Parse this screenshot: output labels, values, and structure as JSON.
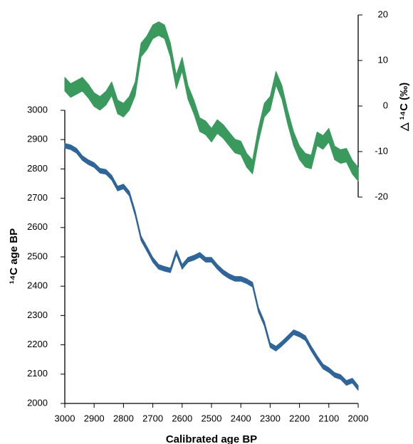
{
  "chart_data": {
    "type": "band",
    "xlabel": "Calibrated age BP",
    "ylabel": "¹⁴C age BP",
    "y2label": "△ ¹⁴C (‰)",
    "x": [
      3000,
      2980,
      2960,
      2940,
      2920,
      2900,
      2880,
      2860,
      2840,
      2820,
      2800,
      2780,
      2760,
      2740,
      2720,
      2700,
      2680,
      2660,
      2640,
      2620,
      2600,
      2580,
      2560,
      2540,
      2520,
      2500,
      2480,
      2460,
      2440,
      2420,
      2400,
      2380,
      2360,
      2340,
      2320,
      2300,
      2280,
      2260,
      2240,
      2220,
      2200,
      2180,
      2160,
      2140,
      2120,
      2100,
      2080,
      2060,
      2040,
      2020,
      2000
    ],
    "xlim": [
      3000,
      2000
    ],
    "xticks": [
      3000,
      2900,
      2800,
      2700,
      2600,
      2500,
      2400,
      2300,
      2200,
      2100,
      2000
    ],
    "ylim": [
      2000,
      3000
    ],
    "yticks": [
      2000,
      2100,
      2200,
      2300,
      2400,
      2500,
      2600,
      2700,
      2800,
      2900,
      3000
    ],
    "y2lim": [
      -20,
      20
    ],
    "y2ticks": [
      -20,
      -10,
      0,
      10,
      20
    ],
    "series": [
      {
        "color": "#2f6598",
        "axis": "y",
        "lower": [
          2871,
          2866,
          2854,
          2829,
          2815,
          2805,
          2786,
          2782,
          2762,
          2725,
          2732,
          2708,
          2640,
          2555,
          2519,
          2482,
          2458,
          2451,
          2446,
          2507,
          2458,
          2482,
          2489,
          2499,
          2482,
          2482,
          2458,
          2439,
          2426,
          2417,
          2417,
          2409,
          2397,
          2312,
          2264,
          2191,
          2179,
          2196,
          2215,
          2235,
          2227,
          2215,
          2179,
          2147,
          2118,
          2106,
          2089,
          2082,
          2062,
          2070,
          2045
        ],
        "upper": [
          2887,
          2882,
          2870,
          2845,
          2831,
          2821,
          2802,
          2798,
          2778,
          2741,
          2748,
          2724,
          2656,
          2571,
          2535,
          2498,
          2474,
          2467,
          2462,
          2523,
          2474,
          2498,
          2505,
          2515,
          2498,
          2498,
          2474,
          2455,
          2442,
          2433,
          2433,
          2425,
          2413,
          2328,
          2280,
          2207,
          2195,
          2212,
          2231,
          2251,
          2243,
          2231,
          2195,
          2163,
          2134,
          2122,
          2105,
          2098,
          2078,
          2086,
          2061
        ]
      },
      {
        "color": "#3a9a5e",
        "axis": "y2",
        "lower": [
          3.3,
          1.9,
          2.6,
          3.3,
          1.8,
          -0.1,
          -0.9,
          0.2,
          2.3,
          -1.7,
          -2.4,
          -0.9,
          2.3,
          10.8,
          12.4,
          14.8,
          15.5,
          14.8,
          10.8,
          3.8,
          7.7,
          1.5,
          -1.7,
          -5.6,
          -6.3,
          -7.9,
          -6,
          -7.1,
          -8.7,
          -10.3,
          -10.7,
          -13.4,
          -14.9,
          -7.9,
          -2.4,
          -0.9,
          4.6,
          1.5,
          -4,
          -8.7,
          -11.8,
          -13.4,
          -13.8,
          -8.7,
          -9.5,
          -7.9,
          -11.8,
          -12.6,
          -12.3,
          -14.9,
          -16.5
        ],
        "upper": [
          6.3,
          4.9,
          5.6,
          6.3,
          4.8,
          2.9,
          2.1,
          3.2,
          5.3,
          1.3,
          0.6,
          2.1,
          5.3,
          13.8,
          15.4,
          17.8,
          18.5,
          17.8,
          13.8,
          6.8,
          10.7,
          4.5,
          1.3,
          -2.6,
          -3.3,
          -4.9,
          -3,
          -4.1,
          -5.7,
          -7.3,
          -7.7,
          -10.4,
          -11.9,
          -4.9,
          0.6,
          2.1,
          7.6,
          4.5,
          -1,
          -5.7,
          -8.8,
          -10.4,
          -10.8,
          -5.7,
          -6.5,
          -4.9,
          -8.8,
          -9.6,
          -9.3,
          -11.9,
          -13.5
        ]
      }
    ]
  }
}
